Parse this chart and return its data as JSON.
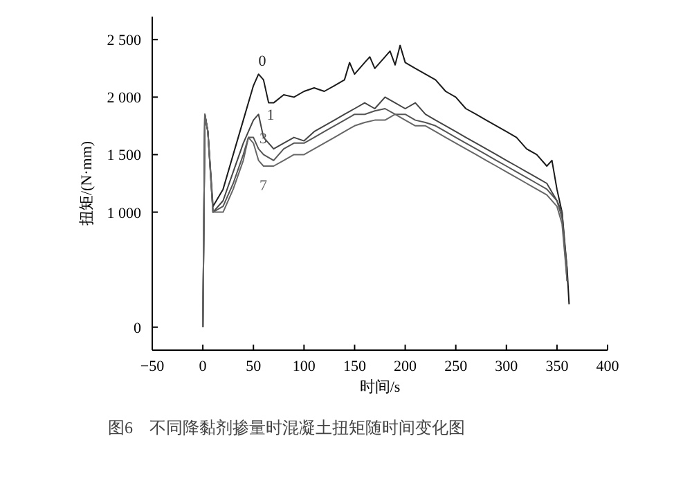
{
  "chart_data": {
    "type": "line",
    "xlabel": "时间/s",
    "ylabel": "扭矩/(N·mm)",
    "annotations": [
      "图6　不同降黏剂掺量时混凝土扭矩随时间变化图"
    ],
    "xlim": [
      -50,
      400
    ],
    "xticks": [
      -50,
      0,
      50,
      100,
      150,
      200,
      250,
      300,
      350,
      400
    ],
    "ylim": [
      -200,
      2700
    ],
    "yticks": [
      0,
      {
        "value": 1000,
        "label": "1 000"
      },
      {
        "value": 1500,
        "label": "1 500"
      },
      {
        "value": 2000,
        "label": "2 000"
      },
      {
        "value": 2500,
        "label": "2 500"
      }
    ],
    "grid": false,
    "legend": false,
    "marker": "none",
    "line_style": "solid",
    "series": [
      {
        "name": "0",
        "color": "#1a1a1a",
        "x": [
          0,
          2,
          5,
          10,
          20,
          30,
          40,
          50,
          55,
          60,
          65,
          70,
          80,
          90,
          100,
          110,
          120,
          130,
          140,
          145,
          150,
          160,
          165,
          170,
          180,
          185,
          190,
          195,
          200,
          210,
          220,
          230,
          240,
          250,
          260,
          270,
          280,
          290,
          300,
          310,
          320,
          330,
          340,
          345,
          350,
          355,
          360,
          362
        ],
        "values": [
          0,
          1850,
          1700,
          1050,
          1200,
          1500,
          1800,
          2100,
          2200,
          2150,
          1950,
          1950,
          2020,
          2000,
          2050,
          2080,
          2050,
          2100,
          2150,
          2300,
          2200,
          2300,
          2350,
          2250,
          2350,
          2400,
          2280,
          2450,
          2300,
          2250,
          2200,
          2150,
          2050,
          2000,
          1900,
          1850,
          1800,
          1750,
          1700,
          1650,
          1550,
          1500,
          1400,
          1450,
          1200,
          1000,
          500,
          200
        ]
      },
      {
        "name": "1",
        "color": "#444444",
        "x": [
          0,
          2,
          5,
          10,
          20,
          30,
          40,
          50,
          55,
          60,
          65,
          70,
          80,
          90,
          100,
          110,
          120,
          130,
          140,
          150,
          160,
          170,
          180,
          190,
          200,
          210,
          220,
          230,
          240,
          250,
          260,
          270,
          280,
          290,
          300,
          310,
          320,
          330,
          340,
          350,
          355,
          360
        ],
        "values": [
          0,
          1850,
          1700,
          1000,
          1100,
          1350,
          1600,
          1800,
          1850,
          1650,
          1600,
          1550,
          1600,
          1650,
          1620,
          1700,
          1750,
          1800,
          1850,
          1900,
          1950,
          1900,
          2000,
          1950,
          1900,
          1950,
          1850,
          1800,
          1750,
          1700,
          1650,
          1600,
          1550,
          1500,
          1450,
          1400,
          1350,
          1300,
          1250,
          1100,
          1000,
          400
        ]
      },
      {
        "name": "3",
        "color": "#555555",
        "x": [
          0,
          2,
          5,
          10,
          20,
          30,
          40,
          45,
          50,
          55,
          60,
          70,
          80,
          90,
          100,
          110,
          120,
          130,
          140,
          150,
          160,
          170,
          180,
          190,
          200,
          210,
          220,
          230,
          240,
          250,
          260,
          270,
          280,
          290,
          300,
          310,
          320,
          330,
          340,
          350,
          355,
          360
        ],
        "values": [
          0,
          1850,
          1700,
          1000,
          1050,
          1250,
          1500,
          1650,
          1650,
          1550,
          1500,
          1450,
          1550,
          1600,
          1600,
          1650,
          1700,
          1750,
          1800,
          1850,
          1850,
          1880,
          1900,
          1850,
          1850,
          1800,
          1780,
          1750,
          1700,
          1650,
          1600,
          1550,
          1500,
          1450,
          1400,
          1350,
          1300,
          1250,
          1200,
          1100,
          950,
          500
        ]
      },
      {
        "name": "7",
        "color": "#666666",
        "x": [
          0,
          2,
          5,
          10,
          20,
          30,
          40,
          45,
          50,
          55,
          60,
          70,
          80,
          90,
          100,
          110,
          120,
          130,
          140,
          150,
          160,
          170,
          180,
          190,
          200,
          210,
          220,
          230,
          240,
          250,
          260,
          270,
          280,
          290,
          300,
          310,
          320,
          330,
          340,
          350,
          355,
          360
        ],
        "values": [
          0,
          1850,
          1700,
          1000,
          1000,
          1200,
          1450,
          1650,
          1600,
          1450,
          1400,
          1400,
          1450,
          1500,
          1500,
          1550,
          1600,
          1650,
          1700,
          1750,
          1780,
          1800,
          1800,
          1850,
          1800,
          1750,
          1750,
          1700,
          1650,
          1600,
          1550,
          1500,
          1450,
          1400,
          1350,
          1300,
          1250,
          1200,
          1150,
          1050,
          900,
          400
        ]
      }
    ]
  }
}
